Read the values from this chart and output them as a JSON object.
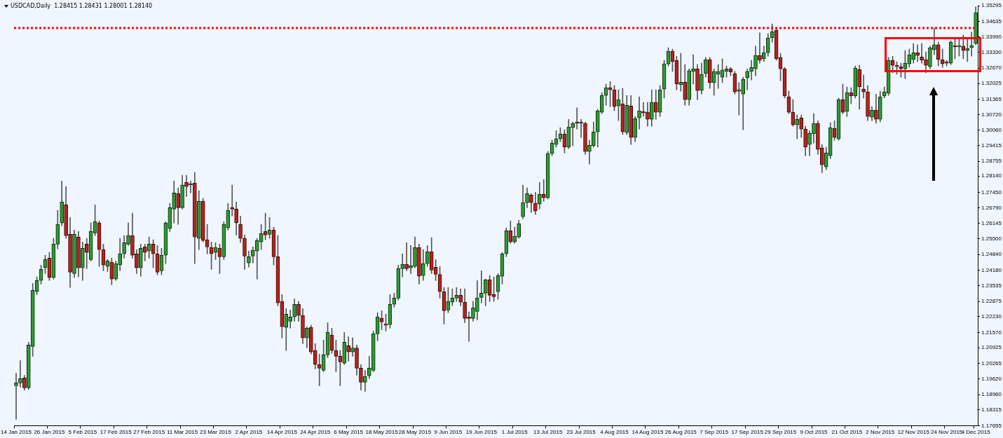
{
  "chart_data": {
    "type": "candlestick",
    "title": "USDCAD,Daily  1.28415 1.28431 1.28001 1.28140",
    "categories": [
      "14 Jan 2015",
      null,
      null,
      null,
      null,
      null,
      null,
      null,
      "26 Jan 2015",
      null,
      null,
      null,
      null,
      null,
      null,
      null,
      "5 Feb 2015",
      null,
      null,
      null,
      null,
      null,
      null,
      null,
      "17 Feb 2015",
      null,
      null,
      null,
      null,
      null,
      null,
      null,
      "27 Feb 2015",
      null,
      null,
      null,
      null,
      null,
      null,
      null,
      "11 Mar 2015",
      null,
      null,
      null,
      null,
      null,
      null,
      null,
      "23 Mar 2015",
      null,
      null,
      null,
      null,
      null,
      null,
      null,
      "2 Apr 2015",
      null,
      null,
      null,
      null,
      null,
      null,
      null,
      "14 Apr 2015",
      null,
      null,
      null,
      null,
      null,
      null,
      null,
      "24 Apr 2015",
      null,
      null,
      null,
      null,
      null,
      null,
      null,
      "6 May 2015",
      null,
      null,
      null,
      null,
      null,
      null,
      null,
      "18 May 2015",
      null,
      null,
      null,
      null,
      null,
      null,
      null,
      "28 May 2015",
      null,
      null,
      null,
      null,
      null,
      null,
      null,
      "9 Jun 2015",
      null,
      null,
      null,
      null,
      null,
      null,
      null,
      "19 Jun 2015",
      null,
      null,
      null,
      null,
      null,
      null,
      null,
      "1 Jul 2015",
      null,
      null,
      null,
      null,
      null,
      null,
      null,
      "13 Jul 2015",
      null,
      null,
      null,
      null,
      null,
      null,
      null,
      "23 Jul 2015",
      null,
      null,
      null,
      null,
      null,
      null,
      null,
      "4 Aug 2015",
      null,
      null,
      null,
      null,
      null,
      null,
      null,
      "14 Aug 2015",
      null,
      null,
      null,
      null,
      null,
      null,
      null,
      "26 Aug 2015",
      null,
      null,
      null,
      null,
      null,
      null,
      null,
      "7 Sep 2015",
      null,
      null,
      null,
      null,
      null,
      null,
      null,
      "17 Sep 2015",
      null,
      null,
      null,
      null,
      null,
      null,
      null,
      "29 Sep 2015",
      null,
      null,
      null,
      null,
      null,
      null,
      null,
      "9 Oct 2015",
      null,
      null,
      null,
      null,
      null,
      null,
      null,
      "21 Oct 2015",
      null,
      null,
      null,
      null,
      null,
      null,
      null,
      "2 Nov 2015",
      null,
      null,
      null,
      null,
      null,
      null,
      null,
      "12 Nov 2015",
      null,
      null,
      null,
      null,
      null,
      null,
      null,
      "24 Nov 2015",
      null,
      null,
      null,
      null,
      null,
      null,
      "4 Dec 2015"
    ],
    "ohlc": [
      [
        1.1933,
        1.1986,
        1.1792,
        1.1945
      ],
      [
        1.1945,
        1.2039,
        1.1927,
        1.1963
      ],
      [
        1.1966,
        1.1977,
        1.1915,
        1.1924
      ],
      [
        1.1924,
        1.2116,
        1.1918,
        1.2104
      ],
      [
        1.2098,
        1.2363,
        1.2057,
        1.2334
      ],
      [
        1.2328,
        1.239,
        1.2316,
        1.2375
      ],
      [
        1.2375,
        1.244,
        1.236,
        1.2422
      ],
      [
        1.2428,
        1.2481,
        1.2404,
        1.2463
      ],
      [
        1.2469,
        1.2493,
        1.2375,
        1.2387
      ],
      [
        1.2387,
        1.2552,
        1.2381,
        1.2528
      ],
      [
        1.2528,
        1.267,
        1.2508,
        1.2611
      ],
      [
        1.2617,
        1.2793,
        1.2605,
        1.2705
      ],
      [
        1.2693,
        1.277,
        1.2552,
        1.2564
      ],
      [
        1.2569,
        1.264,
        1.2346,
        1.241
      ],
      [
        1.2404,
        1.2587,
        1.2387,
        1.2569
      ],
      [
        1.2558,
        1.2581,
        1.239,
        1.2428
      ],
      [
        1.2428,
        1.2537,
        1.2375,
        1.251
      ],
      [
        1.2528,
        1.2552,
        1.2425,
        1.2493
      ],
      [
        1.2463,
        1.2617,
        1.2457,
        1.2581
      ],
      [
        1.2575,
        1.2693,
        1.2564,
        1.2622
      ],
      [
        1.2617,
        1.2625,
        1.2434,
        1.2505
      ],
      [
        1.2505,
        1.2528,
        1.2416,
        1.244
      ],
      [
        1.2434,
        1.2463,
        1.2413,
        1.2457
      ],
      [
        1.2452,
        1.2469,
        1.2357,
        1.2381
      ],
      [
        1.2381,
        1.2457,
        1.2375,
        1.2446
      ],
      [
        1.244,
        1.2552,
        1.2416,
        1.2487
      ],
      [
        1.2487,
        1.2564,
        1.2469,
        1.2534
      ],
      [
        1.2528,
        1.2617,
        1.2522,
        1.2564
      ],
      [
        1.2564,
        1.2658,
        1.2469,
        1.2481
      ],
      [
        1.2487,
        1.2505,
        1.2404,
        1.2428
      ],
      [
        1.2428,
        1.2528,
        1.2393,
        1.251
      ],
      [
        1.2516,
        1.2528,
        1.2457,
        1.2493
      ],
      [
        1.2499,
        1.2558,
        1.2469,
        1.2528
      ],
      [
        1.2528,
        1.2546,
        1.2428,
        1.2487
      ],
      [
        1.2487,
        1.2522,
        1.2399,
        1.241
      ],
      [
        1.2416,
        1.251,
        1.2399,
        1.2481
      ],
      [
        1.2481,
        1.2622,
        1.2446,
        1.2617
      ],
      [
        1.2593,
        1.2699,
        1.2581,
        1.2681
      ],
      [
        1.2675,
        1.2793,
        1.2617,
        1.2743
      ],
      [
        1.274,
        1.2764,
        1.2611,
        1.2681
      ],
      [
        1.2681,
        1.2817,
        1.2675,
        1.2776
      ],
      [
        1.2787,
        1.2817,
        1.2728,
        1.277
      ],
      [
        1.2776,
        1.2793,
        1.2743,
        1.2781
      ],
      [
        1.2784,
        1.2829,
        1.2446,
        1.2558
      ],
      [
        1.2552,
        1.2752,
        1.2505,
        1.2708
      ],
      [
        1.2708,
        1.272,
        1.2537,
        1.2543
      ],
      [
        1.2546,
        1.2611,
        1.2487,
        1.2516
      ],
      [
        1.2513,
        1.2537,
        1.2422,
        1.2487
      ],
      [
        1.2493,
        1.2534,
        1.2463,
        1.2513
      ],
      [
        1.251,
        1.2528,
        1.2404,
        1.2475
      ],
      [
        1.2475,
        1.2622,
        1.2463,
        1.2611
      ],
      [
        1.2596,
        1.2699,
        1.2587,
        1.267
      ],
      [
        1.2678,
        1.2776,
        1.2646,
        1.2675
      ],
      [
        1.2675,
        1.2705,
        1.2566,
        1.2617
      ],
      [
        1.2611,
        1.2646,
        1.2534,
        1.2552
      ],
      [
        1.2552,
        1.2566,
        1.2422,
        1.2478
      ],
      [
        1.2449,
        1.2499,
        1.2431,
        1.2475
      ],
      [
        1.2478,
        1.2516,
        1.2449,
        1.2502
      ],
      [
        1.2499,
        1.2552,
        1.2381,
        1.2543
      ],
      [
        1.2537,
        1.2611,
        1.2505,
        1.2572
      ],
      [
        1.2581,
        1.2658,
        1.2546,
        1.2566
      ],
      [
        1.2569,
        1.264,
        1.2552,
        1.2587
      ],
      [
        1.2587,
        1.2599,
        1.244,
        1.2475
      ],
      [
        1.2475,
        1.2564,
        1.2269,
        1.2281
      ],
      [
        1.2287,
        1.2316,
        1.2134,
        1.2181
      ],
      [
        1.2178,
        1.2257,
        1.2081,
        1.2234
      ],
      [
        1.2204,
        1.2251,
        1.2175,
        1.2222
      ],
      [
        1.2222,
        1.2298,
        1.2204,
        1.2275
      ],
      [
        1.2275,
        1.2287,
        1.2204,
        1.2228
      ],
      [
        1.2228,
        1.2257,
        1.211,
        1.2134
      ],
      [
        1.2134,
        1.2181,
        1.2092,
        1.2175
      ],
      [
        1.2178,
        1.2187,
        1.2066,
        1.2075
      ],
      [
        1.2081,
        1.211,
        1.2004,
        1.2022
      ],
      [
        1.2022,
        1.2066,
        1.1933,
        1.2007
      ],
      [
        1.1998,
        1.2125,
        1.1992,
        1.2063
      ],
      [
        1.2063,
        1.2198,
        1.2051,
        1.2157
      ],
      [
        1.2145,
        1.2175,
        1.2069,
        1.2081
      ],
      [
        1.2081,
        1.2125,
        1.1992,
        1.2057
      ],
      [
        1.2057,
        1.2081,
        1.1933,
        1.2033
      ],
      [
        1.2028,
        1.2157,
        1.2022,
        1.2116
      ],
      [
        1.2101,
        1.2139,
        1.2036,
        1.2075
      ],
      [
        1.2075,
        1.2134,
        1.2057,
        1.2092
      ],
      [
        1.2092,
        1.2104,
        1.1977,
        1.2007
      ],
      [
        1.2007,
        1.2022,
        1.1915,
        1.1948
      ],
      [
        1.1948,
        1.1998,
        1.191,
        1.1972
      ],
      [
        1.1975,
        1.2057,
        1.1963,
        1.2007
      ],
      [
        1.1998,
        1.2163,
        1.1992,
        1.2151
      ],
      [
        1.2151,
        1.224,
        1.2122,
        1.2222
      ],
      [
        1.2216,
        1.2248,
        1.2169,
        1.2201
      ],
      [
        1.219,
        1.2234,
        1.2163,
        1.2187
      ],
      [
        1.219,
        1.2316,
        1.2175,
        1.2275
      ],
      [
        1.2275,
        1.2322,
        1.2263,
        1.2301
      ],
      [
        1.2301,
        1.244,
        1.2293,
        1.2425
      ],
      [
        1.2425,
        1.2487,
        1.239,
        1.2443
      ],
      [
        1.2443,
        1.2534,
        1.2416,
        1.2425
      ],
      [
        1.2428,
        1.2522,
        1.2404,
        1.2437
      ],
      [
        1.2434,
        1.2558,
        1.2428,
        1.2513
      ],
      [
        1.2513,
        1.2528,
        1.236,
        1.2393
      ],
      [
        1.2396,
        1.2505,
        1.2375,
        1.2446
      ],
      [
        1.2446,
        1.2522,
        1.2434,
        1.2496
      ],
      [
        1.2496,
        1.2555,
        1.2404,
        1.2419
      ],
      [
        1.2431,
        1.2463,
        1.2375,
        1.2401
      ],
      [
        1.2401,
        1.2434,
        1.2301,
        1.2328
      ],
      [
        1.2328,
        1.2346,
        1.2192,
        1.2248
      ],
      [
        1.2251,
        1.2346,
        1.224,
        1.2287
      ],
      [
        1.2284,
        1.234,
        1.2269,
        1.2301
      ],
      [
        1.2301,
        1.2346,
        1.2287,
        1.2313
      ],
      [
        1.2313,
        1.234,
        1.2269,
        1.2284
      ],
      [
        1.2284,
        1.234,
        1.2198,
        1.2216
      ],
      [
        1.2219,
        1.2243,
        1.2119,
        1.2216
      ],
      [
        1.2216,
        1.2287,
        1.2204,
        1.226
      ],
      [
        1.2245,
        1.2375,
        1.221,
        1.2301
      ],
      [
        1.2304,
        1.2416,
        1.2281,
        1.2322
      ],
      [
        1.2322,
        1.2381,
        1.2269,
        1.2378
      ],
      [
        1.2378,
        1.2396,
        1.2287,
        1.2313
      ],
      [
        1.2316,
        1.239,
        1.2287,
        1.2307
      ],
      [
        1.2328,
        1.2404,
        1.2296,
        1.2396
      ],
      [
        1.2393,
        1.2493,
        1.236,
        1.2487
      ],
      [
        1.2487,
        1.2596,
        1.2475,
        1.2584
      ],
      [
        1.2584,
        1.2625,
        1.2531,
        1.2537
      ],
      [
        1.2537,
        1.2599,
        1.2531,
        1.2561
      ],
      [
        1.2558,
        1.2628,
        1.2552,
        1.2614
      ],
      [
        1.2643,
        1.2776,
        1.2634,
        1.2702
      ],
      [
        1.2702,
        1.2764,
        1.2681,
        1.274
      ],
      [
        1.2734,
        1.274,
        1.2661,
        1.2702
      ],
      [
        1.2699,
        1.2746,
        1.2652,
        1.2667
      ],
      [
        1.2696,
        1.2787,
        1.2675,
        1.2737
      ],
      [
        1.2737,
        1.2799,
        1.2708,
        1.2723
      ],
      [
        1.2723,
        1.2917,
        1.2717,
        1.2908
      ],
      [
        1.2908,
        1.2964,
        1.2899,
        1.2952
      ],
      [
        1.2946,
        1.3005,
        1.2935,
        1.297
      ],
      [
        1.297,
        1.3017,
        1.2958,
        1.2991
      ],
      [
        1.2991,
        1.3008,
        1.2911,
        1.2935
      ],
      [
        1.2935,
        1.3052,
        1.2929,
        1.302
      ],
      [
        1.3017,
        1.3041,
        1.2941,
        1.3035
      ],
      [
        1.3038,
        1.31,
        1.3011,
        1.3035
      ],
      [
        1.3035,
        1.3052,
        1.2976,
        1.3038
      ],
      [
        1.3035,
        1.3041,
        1.2905,
        1.2917
      ],
      [
        1.2917,
        1.2964,
        1.2864,
        1.2943
      ],
      [
        1.2941,
        1.3041,
        1.2935,
        1.2999
      ],
      [
        1.2999,
        1.3094,
        1.2935,
        1.3088
      ],
      [
        1.3082,
        1.3164,
        1.3076,
        1.3152
      ],
      [
        1.3152,
        1.32,
        1.3111,
        1.3185
      ],
      [
        1.3185,
        1.3211,
        1.3105,
        1.3176
      ],
      [
        1.3176,
        1.3194,
        1.3088,
        1.3105
      ],
      [
        1.3108,
        1.3176,
        1.3046,
        1.3135
      ],
      [
        1.3117,
        1.3182,
        1.2988,
        1.2999
      ],
      [
        1.2996,
        1.3152,
        1.2988,
        1.3111
      ],
      [
        1.3108,
        1.3152,
        1.2946,
        1.2976
      ],
      [
        1.2976,
        1.3064,
        1.2958,
        1.3055
      ],
      [
        1.3058,
        1.3147,
        1.3011,
        1.3088
      ],
      [
        1.3085,
        1.3123,
        1.3064,
        1.3079
      ],
      [
        1.3082,
        1.3123,
        1.3023,
        1.3052
      ],
      [
        1.3052,
        1.3176,
        1.3023,
        1.3123
      ],
      [
        1.3123,
        1.3176,
        1.3052,
        1.3082
      ],
      [
        1.3082,
        1.3194,
        1.3064,
        1.3176
      ],
      [
        1.3179,
        1.33,
        1.3141,
        1.3285
      ],
      [
        1.3285,
        1.3353,
        1.3276,
        1.3338
      ],
      [
        1.3338,
        1.3347,
        1.3253,
        1.3294
      ],
      [
        1.33,
        1.3317,
        1.3176,
        1.32
      ],
      [
        1.3197,
        1.3329,
        1.317,
        1.3208
      ],
      [
        1.3208,
        1.3282,
        1.3111,
        1.3135
      ],
      [
        1.3135,
        1.3264,
        1.3111,
        1.3256
      ],
      [
        1.3253,
        1.3323,
        1.32,
        1.3264
      ],
      [
        1.3264,
        1.3282,
        1.3135,
        1.3173
      ],
      [
        1.3173,
        1.3288,
        1.3158,
        1.3241
      ],
      [
        1.3244,
        1.3312,
        1.3229,
        1.3303
      ],
      [
        1.3303,
        1.3312,
        1.3182,
        1.3206
      ],
      [
        1.3206,
        1.3264,
        1.3152,
        1.3253
      ],
      [
        1.3241,
        1.3282,
        1.3182,
        1.3253
      ],
      [
        1.3229,
        1.3306,
        1.3206,
        1.3259
      ],
      [
        1.3253,
        1.3276,
        1.3229,
        1.3264
      ],
      [
        1.3264,
        1.327,
        1.3235,
        1.325
      ],
      [
        1.3244,
        1.3253,
        1.3158,
        1.3167
      ],
      [
        1.3173,
        1.3206,
        1.307,
        1.317
      ],
      [
        1.3158,
        1.3229,
        1.3008,
        1.322
      ],
      [
        1.3226,
        1.3264,
        1.3176,
        1.3253
      ],
      [
        1.3253,
        1.33,
        1.3217,
        1.327
      ],
      [
        1.3264,
        1.3359,
        1.3235,
        1.332
      ],
      [
        1.332,
        1.3415,
        1.3288,
        1.33
      ],
      [
        1.3306,
        1.3359,
        1.3294,
        1.3332
      ],
      [
        1.3332,
        1.3412,
        1.3317,
        1.3394
      ],
      [
        1.3394,
        1.3453,
        1.3376,
        1.342
      ],
      [
        1.3426,
        1.3435,
        1.33,
        1.3306
      ],
      [
        1.3312,
        1.3329,
        1.3214,
        1.3264
      ],
      [
        1.3264,
        1.327,
        1.3141,
        1.315
      ],
      [
        1.3147,
        1.317,
        1.3076,
        1.3082
      ],
      [
        1.3082,
        1.3135,
        1.3023,
        1.3029
      ],
      [
        1.3029,
        1.307,
        1.297,
        1.3052
      ],
      [
        1.3058,
        1.307,
        1.2976,
        1.3011
      ],
      [
        1.3011,
        1.3023,
        1.2899,
        1.2935
      ],
      [
        1.2946,
        1.3005,
        1.2899,
        1.2993
      ],
      [
        1.2991,
        1.3076,
        1.2952,
        1.3035
      ],
      [
        1.3035,
        1.3046,
        1.2905,
        1.2926
      ],
      [
        1.2932,
        1.2946,
        1.2828,
        1.2861
      ],
      [
        1.2852,
        1.2935,
        1.284,
        1.2911
      ],
      [
        1.2899,
        1.3038,
        1.2887,
        1.3017
      ],
      [
        1.3014,
        1.3046,
        1.2964,
        1.2976
      ],
      [
        1.297,
        1.3141,
        1.2964,
        1.3135
      ],
      [
        1.3135,
        1.32,
        1.3076,
        1.3082
      ],
      [
        1.3085,
        1.3188,
        1.3064,
        1.3164
      ],
      [
        1.3164,
        1.3185,
        1.3117,
        1.315
      ],
      [
        1.315,
        1.3276,
        1.3141,
        1.3267
      ],
      [
        1.3261,
        1.3279,
        1.3094,
        1.3188
      ],
      [
        1.3179,
        1.3238,
        1.3141,
        1.3167
      ],
      [
        1.3167,
        1.3194,
        1.3046,
        1.3064
      ],
      [
        1.3061,
        1.3105,
        1.3046,
        1.3091
      ],
      [
        1.3091,
        1.3158,
        1.3035,
        1.3052
      ],
      [
        1.3052,
        1.317,
        1.3041,
        1.3147
      ],
      [
        1.315,
        1.3188,
        1.3141,
        1.3167
      ],
      [
        1.3161,
        1.3312,
        1.3152,
        1.33
      ],
      [
        1.33,
        1.3317,
        1.3247,
        1.3279
      ],
      [
        1.3279,
        1.3294,
        1.3241,
        1.3273
      ],
      [
        1.3273,
        1.3288,
        1.3229,
        1.3264
      ],
      [
        1.3264,
        1.3341,
        1.3223,
        1.3288
      ],
      [
        1.3285,
        1.3347,
        1.327,
        1.3323
      ],
      [
        1.3303,
        1.337,
        1.3288,
        1.3332
      ],
      [
        1.3332,
        1.3365,
        1.3294,
        1.332
      ],
      [
        1.3314,
        1.337,
        1.3288,
        1.33
      ],
      [
        1.3303,
        1.3335,
        1.3247,
        1.3279
      ],
      [
        1.3273,
        1.3359,
        1.3264,
        1.3353
      ],
      [
        1.3344,
        1.3435,
        1.3323,
        1.3365
      ],
      [
        1.3365,
        1.3376,
        1.3276,
        1.3303
      ],
      [
        1.3303,
        1.3347,
        1.327,
        1.3285
      ],
      [
        1.3291,
        1.33,
        1.3276,
        1.3288
      ],
      [
        1.3288,
        1.3382,
        1.3282,
        1.3376
      ],
      [
        1.3359,
        1.3388,
        1.3306,
        1.3356
      ],
      [
        1.3356,
        1.3388,
        1.3317,
        1.3359
      ],
      [
        1.3359,
        1.3406,
        1.3306,
        1.3341
      ],
      [
        1.3341,
        1.3394,
        1.3294,
        1.335
      ],
      [
        1.3353,
        1.3418,
        1.3317,
        1.3362
      ],
      [
        1.337,
        1.3524,
        1.3365,
        1.35
      ]
    ],
    "ylim": [
      1.17655,
      1.35295
    ],
    "yticks": [
      1.35295,
      1.34635,
      {
        "value": 1.3399,
        "label": "1.33990"
      },
      {
        "value": 1.3333,
        "label": "1.33330"
      },
      {
        "value": 1.3267,
        "label": "1.32670"
      },
      1.32025,
      1.31365,
      {
        "value": 1.3072,
        "label": "1.30720"
      },
      {
        "value": 1.3006,
        "label": "1.30060"
      },
      1.29415,
      1.28755,
      {
        "value": 1.2814,
        "label": "1.28140"
      },
      {
        "value": 1.2745,
        "label": "1.27450"
      },
      {
        "value": 1.2679,
        "label": "1.26790"
      },
      1.26145,
      {
        "value": 1.255,
        "label": "1.25500"
      },
      {
        "value": 1.2484,
        "label": "1.24840"
      },
      {
        "value": 1.2418,
        "label": "1.24180"
      },
      1.23535,
      1.22875,
      {
        "value": 1.2223,
        "label": "1.22230"
      },
      {
        "value": 1.2157,
        "label": "1.21570"
      },
      1.20925,
      1.20265,
      {
        "value": 1.1962,
        "label": "1.19620"
      },
      {
        "value": 1.1896,
        "label": "1.18960"
      },
      1.18315,
      1.17655
    ],
    "ref_lines": [
      {
        "axis": "y",
        "value": 1.3435,
        "color": "#ff0000",
        "line_style": "dotted"
      }
    ]
  }
}
